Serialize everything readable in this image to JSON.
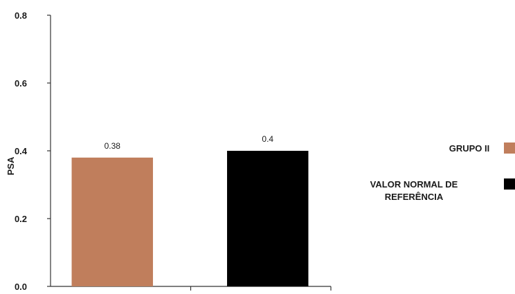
{
  "chart_data": {
    "type": "bar",
    "categories": [
      "GRUPO II",
      "VALOR NORMAL DE REFERÊNCIA"
    ],
    "values": [
      0.38,
      0.4
    ],
    "data_labels": [
      "0.38",
      "0.4"
    ],
    "colors": [
      "#c07e5c",
      "#000000"
    ],
    "ylabel": "PSA",
    "ylim": [
      0,
      0.8
    ],
    "yticks": [
      "0.0",
      "0.2",
      "0.4",
      "0.6",
      "0.8"
    ],
    "grid": false,
    "legend": {
      "placement": "right",
      "entries": [
        {
          "lines": [
            "GRUPO  II"
          ],
          "color": "#c07e5c"
        },
        {
          "lines": [
            "VALOR NORMAL DE",
            "REFERÊNCIA"
          ],
          "color": "#000000"
        }
      ]
    }
  }
}
